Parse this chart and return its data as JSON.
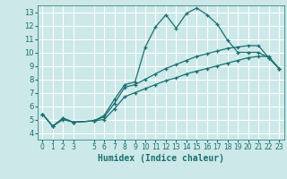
{
  "xlabel": "Humidex (Indice chaleur)",
  "bg_color": "#cce8e8",
  "grid_color": "#ffffff",
  "line_color": "#1a7070",
  "x_ticks": [
    0,
    1,
    2,
    3,
    5,
    6,
    7,
    8,
    9,
    10,
    11,
    12,
    13,
    14,
    15,
    16,
    17,
    18,
    19,
    20,
    21,
    22,
    23
  ],
  "x_tick_labels": [
    "0",
    "1",
    "2",
    "3",
    "5",
    "6",
    "7",
    "8",
    "9",
    "10",
    "11",
    "12",
    "13",
    "14",
    "15",
    "16",
    "17",
    "18",
    "19",
    "20",
    "21",
    "22",
    "23"
  ],
  "ylim": [
    3.5,
    13.5
  ],
  "xlim": [
    -0.5,
    23.5
  ],
  "yticks": [
    4,
    5,
    6,
    7,
    8,
    9,
    10,
    11,
    12,
    13
  ],
  "line1_x": [
    0,
    1,
    2,
    3,
    5,
    6,
    7,
    8,
    9,
    10,
    11,
    12,
    13,
    14,
    15,
    16,
    17,
    18,
    19,
    20,
    21,
    22,
    23
  ],
  "line1_y": [
    5.4,
    4.5,
    5.1,
    4.8,
    4.9,
    5.3,
    6.5,
    7.6,
    7.8,
    10.4,
    11.9,
    12.8,
    11.8,
    12.9,
    13.3,
    12.8,
    12.1,
    10.9,
    10.0,
    10.0,
    10.0,
    9.6,
    8.8
  ],
  "line2_x": [
    0,
    1,
    2,
    3,
    5,
    6,
    7,
    8,
    9,
    10,
    11,
    12,
    13,
    14,
    15,
    16,
    17,
    18,
    19,
    20,
    21,
    22,
    23
  ],
  "line2_y": [
    5.4,
    4.5,
    5.1,
    4.8,
    4.9,
    5.2,
    6.2,
    7.4,
    7.6,
    8.0,
    8.4,
    8.8,
    9.1,
    9.4,
    9.7,
    9.9,
    10.1,
    10.3,
    10.4,
    10.5,
    10.5,
    9.6,
    8.8
  ],
  "line3_x": [
    0,
    1,
    2,
    3,
    5,
    6,
    7,
    8,
    9,
    10,
    11,
    12,
    13,
    14,
    15,
    16,
    17,
    18,
    19,
    20,
    21,
    22,
    23
  ],
  "line3_y": [
    5.4,
    4.5,
    5.0,
    4.8,
    4.9,
    5.0,
    5.8,
    6.7,
    7.0,
    7.3,
    7.6,
    7.9,
    8.1,
    8.4,
    8.6,
    8.8,
    9.0,
    9.2,
    9.4,
    9.6,
    9.7,
    9.7,
    8.8
  ]
}
